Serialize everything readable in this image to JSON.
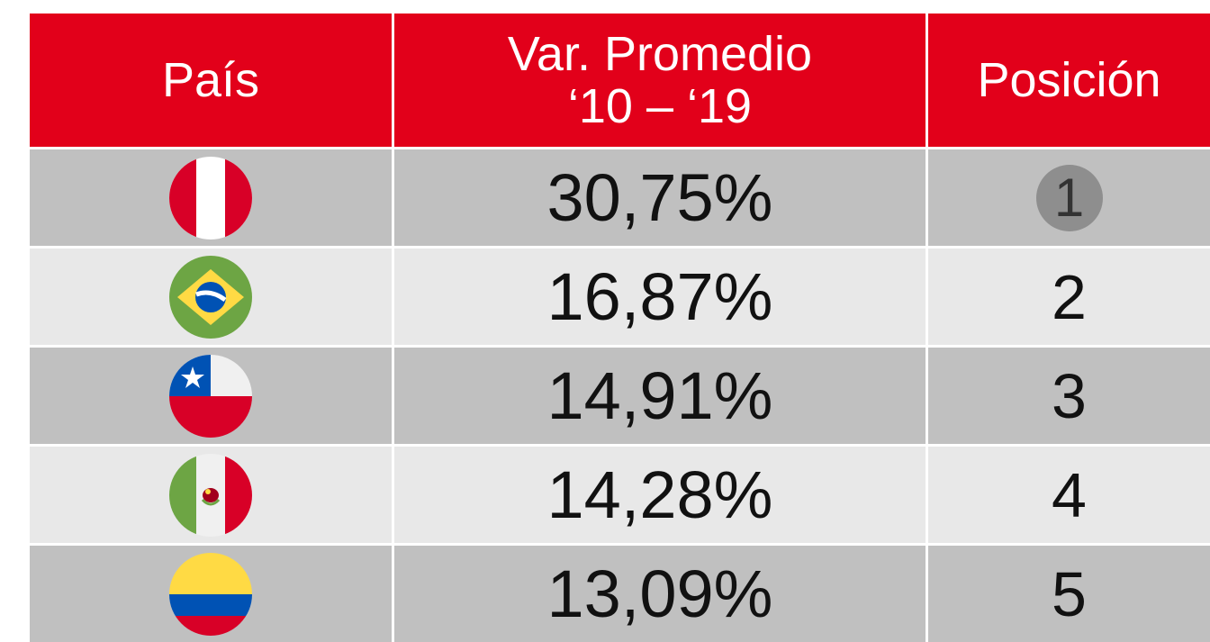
{
  "header": {
    "country": "País",
    "variation": [
      "Var. Promedio",
      "‘10 – ‘19"
    ],
    "position": "Posición"
  },
  "rows": [
    {
      "value": "30,75%",
      "position": "1"
    },
    {
      "value": "16,87%",
      "position": "2"
    },
    {
      "value": "14,91%",
      "position": "3"
    },
    {
      "value": "14,28%",
      "position": "4"
    },
    {
      "value": "13,09%",
      "position": "5"
    }
  ]
}
